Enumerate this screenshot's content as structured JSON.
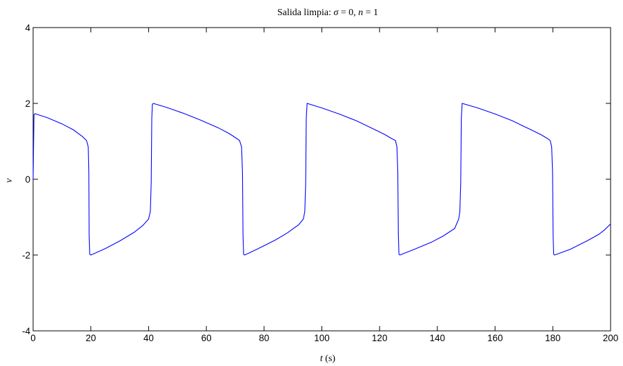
{
  "chart_data": {
    "type": "line",
    "title": "Salida limpia: σ = 0, n = 1",
    "title_parts": {
      "prefix": "Salida limpia: ",
      "sigma": "σ",
      "sigma_eq": " = 0, ",
      "n": "n",
      "n_eq": " = 1"
    },
    "xlabel": "t (s)",
    "xlabel_parts": {
      "var": "t",
      "unit": " (s)"
    },
    "ylabel": "v",
    "xlim": [
      0,
      200
    ],
    "ylim": [
      -4,
      4
    ],
    "xticks": [
      0,
      20,
      40,
      60,
      80,
      100,
      120,
      140,
      160,
      180,
      200
    ],
    "yticks": [
      -4,
      -2,
      0,
      2,
      4
    ],
    "xtick_labels": [
      "0",
      "20",
      "40",
      "60",
      "80",
      "100",
      "120",
      "140",
      "160",
      "180",
      "200"
    ],
    "ytick_labels": [
      "-4",
      "-2",
      "0",
      "2",
      "4"
    ],
    "grid": false,
    "series": [
      {
        "color": "#0000ff",
        "x": [
          0,
          0.3,
          0.6,
          5,
          10,
          14,
          17,
          18.5,
          19.1,
          19.3,
          19.4,
          19.6,
          20,
          25,
          30,
          35,
          38,
          40,
          40.6,
          40.9,
          41.1,
          41.3,
          41.6,
          46,
          52,
          58,
          64,
          68,
          70,
          71.5,
          72.2,
          72.5,
          72.7,
          72.9,
          73.3,
          78,
          84,
          88,
          92,
          93.6,
          94.1,
          94.4,
          94.6,
          94.9,
          100,
          106,
          112,
          118,
          122,
          124,
          125.5,
          126,
          126.3,
          126.5,
          126.7,
          127,
          132,
          138,
          142,
          146,
          147.4,
          147.8,
          148.1,
          148.3,
          148.6,
          154,
          160,
          166,
          172,
          176,
          178,
          179.1,
          179.6,
          179.9,
          180.1,
          180.3,
          180.6,
          186,
          192,
          196,
          198,
          200
        ],
        "y": [
          0,
          1.7,
          1.73,
          1.62,
          1.46,
          1.3,
          1.13,
          1.02,
          0.85,
          0.2,
          -1.5,
          -1.98,
          -2.0,
          -1.83,
          -1.63,
          -1.4,
          -1.22,
          -1.05,
          -0.85,
          -0.1,
          1.6,
          1.97,
          2.0,
          1.9,
          1.74,
          1.56,
          1.36,
          1.2,
          1.1,
          1.02,
          0.85,
          0.2,
          -1.5,
          -1.98,
          -2.0,
          -1.83,
          -1.6,
          -1.42,
          -1.2,
          -1.05,
          -0.85,
          -0.1,
          1.6,
          2.0,
          1.88,
          1.72,
          1.54,
          1.32,
          1.17,
          1.08,
          1.02,
          0.85,
          0.2,
          -1.5,
          -1.98,
          -2.0,
          -1.85,
          -1.66,
          -1.5,
          -1.3,
          -1.05,
          -0.85,
          -0.1,
          1.6,
          2.0,
          1.88,
          1.72,
          1.54,
          1.32,
          1.17,
          1.08,
          1.02,
          0.85,
          0.2,
          -1.5,
          -1.98,
          -2.0,
          -1.85,
          -1.62,
          -1.45,
          -1.33,
          -1.18
        ]
      }
    ]
  }
}
